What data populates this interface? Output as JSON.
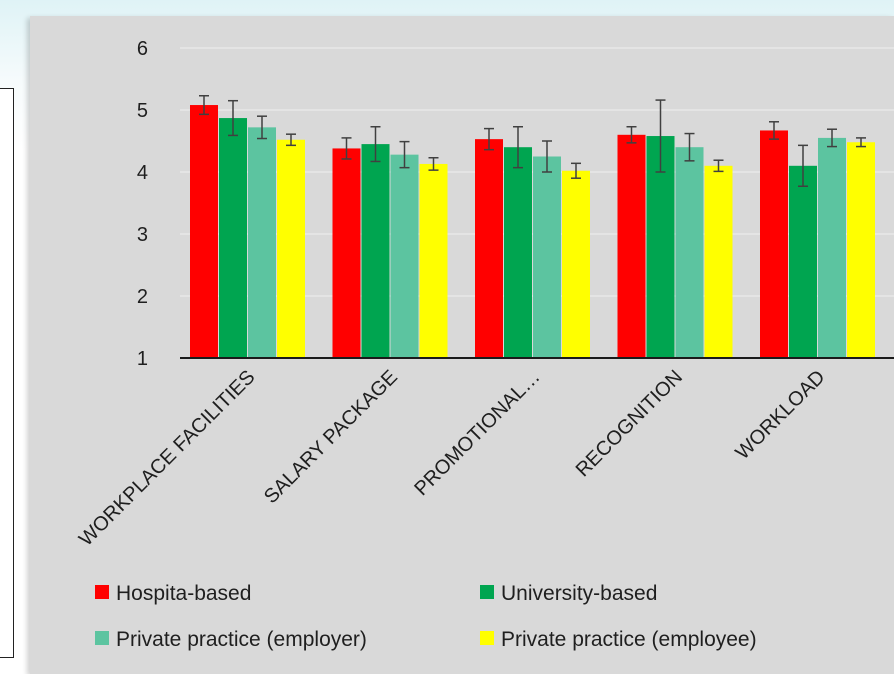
{
  "colors": {
    "hospital": "#ff0000",
    "university": "#00a550",
    "private_employer": "#5cc4a0",
    "private_employee": "#ffff00",
    "error_bar": "#404040",
    "plot_background": "#d9d9d9",
    "gridline": "#eeeeee"
  },
  "chart_data": {
    "type": "bar",
    "title": "",
    "xlabel": "",
    "ylabel": "",
    "ylim": [
      1,
      6
    ],
    "yticks": [
      1,
      2,
      3,
      4,
      5,
      6
    ],
    "grid": true,
    "legend_position": "bottom",
    "categories": [
      "WORKPLACE FACILITIES",
      "SALARY PACKAGE",
      "PROMOTIONAL…",
      "RECOGNITION",
      "WORKLOAD"
    ],
    "series": [
      {
        "name": "Hospita-based",
        "color": "#ff0000",
        "values": [
          5.08,
          4.38,
          4.53,
          4.6,
          4.67
        ],
        "errors": [
          0.15,
          0.17,
          0.17,
          0.13,
          0.14
        ]
      },
      {
        "name": "University-based",
        "color": "#00a550",
        "values": [
          4.87,
          4.45,
          4.4,
          4.58,
          4.1
        ],
        "errors": [
          0.28,
          0.28,
          0.33,
          0.58,
          0.33
        ]
      },
      {
        "name": "Private practice (employer)",
        "color": "#5cc4a0",
        "values": [
          4.72,
          4.28,
          4.25,
          4.4,
          4.55
        ],
        "errors": [
          0.18,
          0.21,
          0.25,
          0.22,
          0.14
        ]
      },
      {
        "name": "Private practice (employee)",
        "color": "#ffff00",
        "values": [
          4.52,
          4.13,
          4.02,
          4.1,
          4.48
        ],
        "errors": [
          0.09,
          0.1,
          0.12,
          0.09,
          0.07
        ]
      }
    ]
  }
}
